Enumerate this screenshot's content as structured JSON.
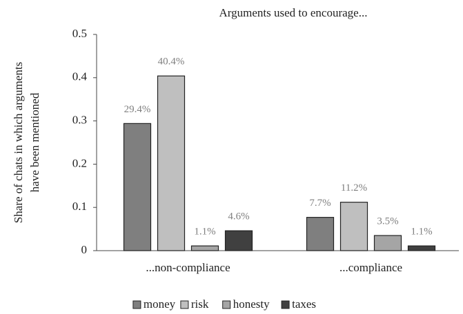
{
  "chart_data": {
    "type": "bar",
    "title": "Arguments used to encourage...",
    "y_label": [
      "Share of chats in which arguments",
      "have been mentioned"
    ],
    "categories": [
      "...non-compliance",
      "...compliance"
    ],
    "series": [
      {
        "name": "money",
        "color": "#7f7f7f",
        "values": [
          0.294,
          0.077
        ],
        "value_labels": [
          "29.4%",
          "7.7%"
        ]
      },
      {
        "name": "risk",
        "color": "#bfbfbf",
        "values": [
          0.404,
          0.112
        ],
        "value_labels": [
          "40.4%",
          "11.2%"
        ]
      },
      {
        "name": "honesty",
        "color": "#a5a5a5",
        "values": [
          0.011,
          0.035
        ],
        "value_labels": [
          "1.1%",
          "3.5%"
        ]
      },
      {
        "name": "taxes",
        "color": "#404040",
        "values": [
          0.046,
          0.011
        ],
        "value_labels": [
          "4.6%",
          "1.1%"
        ]
      }
    ],
    "ylim": [
      0,
      0.5
    ],
    "yticks": [
      0,
      0.1,
      0.2,
      0.3,
      0.4,
      0.5
    ],
    "grid": false,
    "legend": "bottom"
  }
}
